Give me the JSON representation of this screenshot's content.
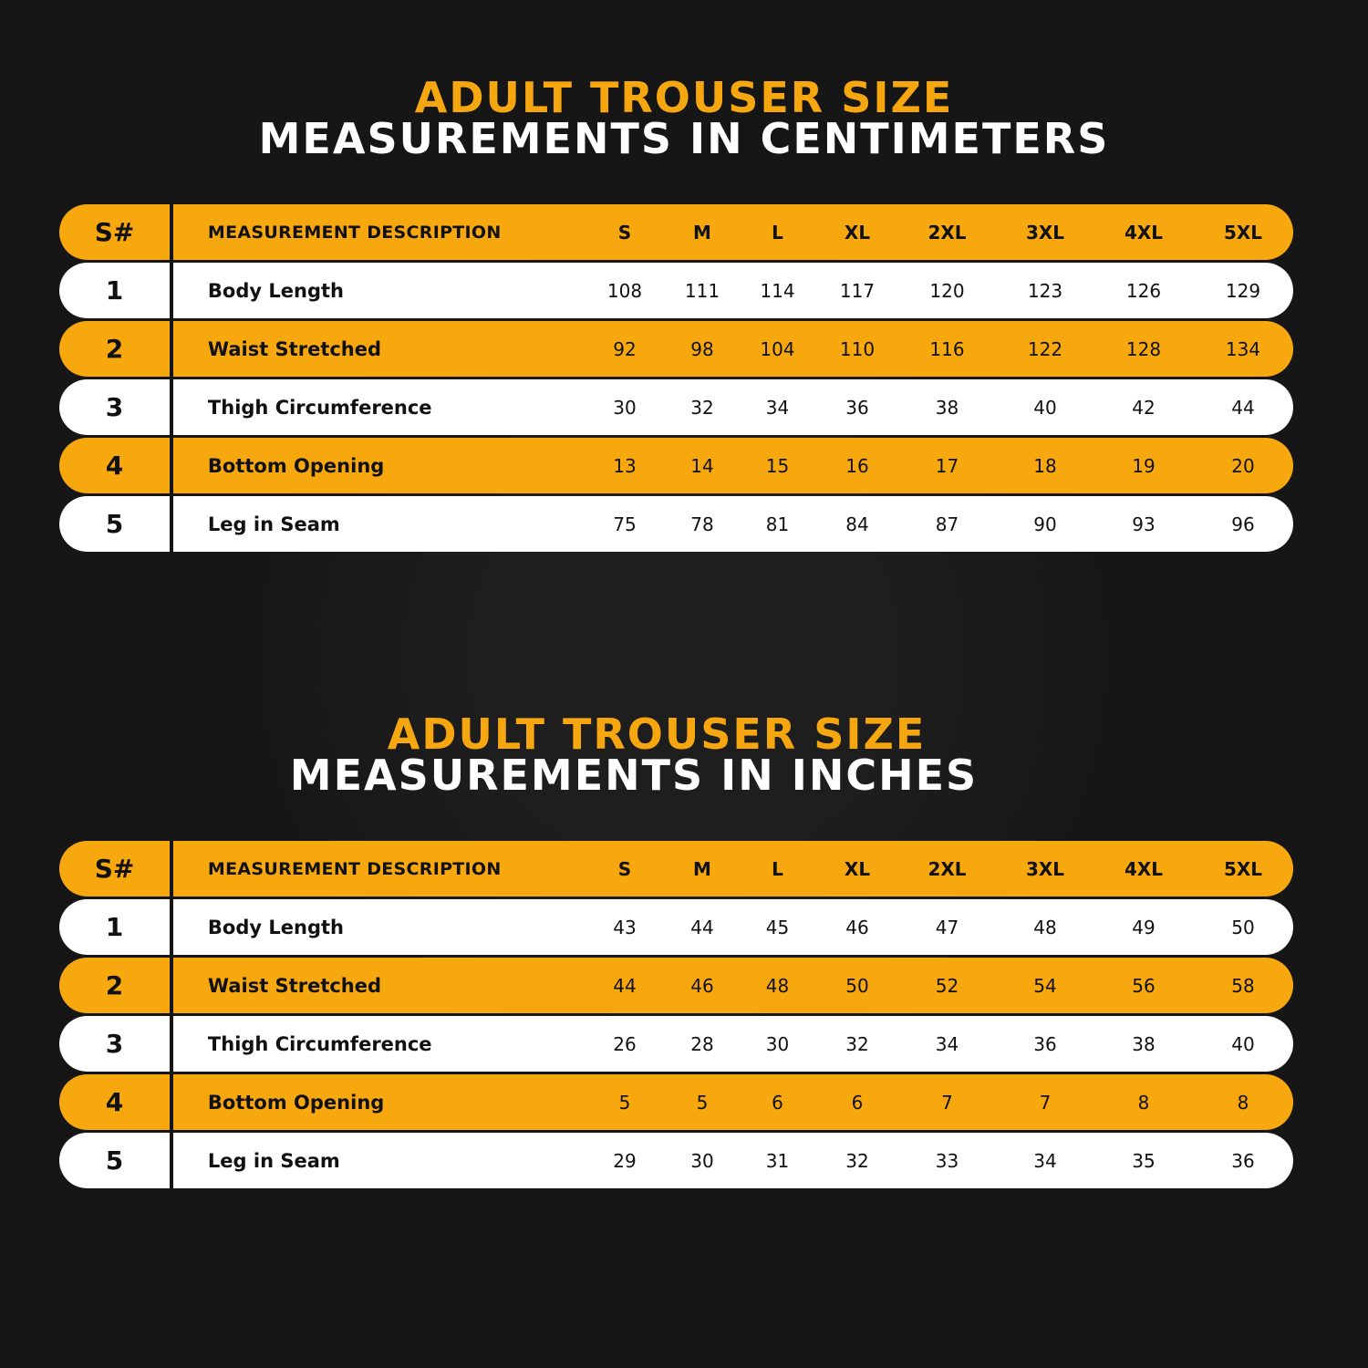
{
  "colors": {
    "background": "#161616",
    "accent": "#f7a80f",
    "row_light": "#ffffff",
    "text_dark": "#111111"
  },
  "tables": [
    {
      "title_line1": "ADULT TROUSER SIZE",
      "title_line2": "MEASUREMENTS IN CENTIMETERS",
      "header": {
        "num": "S#",
        "desc": "MEASUREMENT DESCRIPTION",
        "sizes": [
          "S",
          "M",
          "L",
          "XL",
          "2XL",
          "3XL",
          "4XL",
          "5XL"
        ]
      },
      "rows": [
        {
          "num": "1",
          "desc": "Body Length",
          "values": [
            "108",
            "111",
            "114",
            "117",
            "120",
            "123",
            "126",
            "129"
          ]
        },
        {
          "num": "2",
          "desc": "Waist Stretched",
          "values": [
            "92",
            "98",
            "104",
            "110",
            "116",
            "122",
            "128",
            "134"
          ]
        },
        {
          "num": "3",
          "desc": "Thigh Circumference",
          "values": [
            "30",
            "32",
            "34",
            "36",
            "38",
            "40",
            "42",
            "44"
          ]
        },
        {
          "num": "4",
          "desc": "Bottom Opening",
          "values": [
            "13",
            "14",
            "15",
            "16",
            "17",
            "18",
            "19",
            "20"
          ]
        },
        {
          "num": "5",
          "desc": "Leg in Seam",
          "values": [
            "75",
            "78",
            "81",
            "84",
            "87",
            "90",
            "93",
            "96"
          ]
        }
      ]
    },
    {
      "title_line1": "ADULT TROUSER SIZE",
      "title_line2": "MEASUREMENTS IN INCHES",
      "header": {
        "num": "S#",
        "desc": "MEASUREMENT DESCRIPTION",
        "sizes": [
          "S",
          "M",
          "L",
          "XL",
          "2XL",
          "3XL",
          "4XL",
          "5XL"
        ]
      },
      "rows": [
        {
          "num": "1",
          "desc": "Body Length",
          "values": [
            "43",
            "44",
            "45",
            "46",
            "47",
            "48",
            "49",
            "50"
          ]
        },
        {
          "num": "2",
          "desc": "Waist Stretched",
          "values": [
            "44",
            "46",
            "48",
            "50",
            "52",
            "54",
            "56",
            "58"
          ]
        },
        {
          "num": "3",
          "desc": "Thigh Circumference",
          "values": [
            "26",
            "28",
            "30",
            "32",
            "34",
            "36",
            "38",
            "40"
          ]
        },
        {
          "num": "4",
          "desc": "Bottom Opening",
          "values": [
            "5",
            "5",
            "6",
            "6",
            "7",
            "7",
            "8",
            "8"
          ]
        },
        {
          "num": "5",
          "desc": "Leg in Seam",
          "values": [
            "29",
            "30",
            "31",
            "32",
            "33",
            "34",
            "35",
            "36"
          ]
        }
      ]
    }
  ]
}
